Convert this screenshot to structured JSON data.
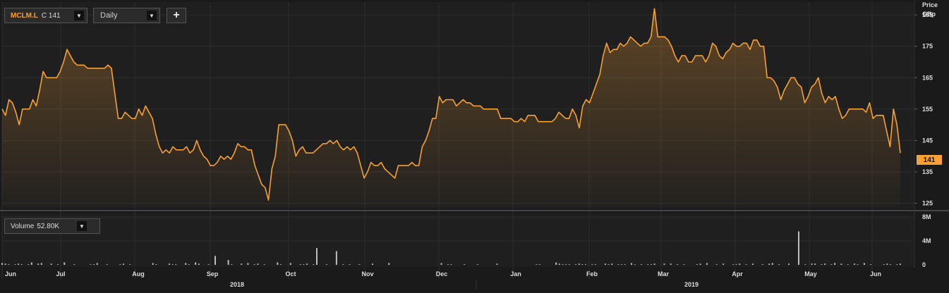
{
  "toolbar": {
    "symbol": "MCLM.L",
    "close_label": "C 141",
    "interval": "Daily",
    "add_label": "+"
  },
  "price_axis": {
    "title": "Price",
    "unit": "GBp"
  },
  "last_price_tag": "141",
  "volume_selector": {
    "label": "Volume",
    "value": "52.80K"
  },
  "colors": {
    "accent": "#f7a035",
    "background": "#1a1a1a",
    "grid": "#2e2e2e",
    "volume_bar": "#bdbdbd"
  },
  "chart_data": [
    {
      "type": "area",
      "series": [
        {
          "values": [
            155,
            153,
            158,
            157,
            154,
            150,
            155,
            155,
            155,
            158,
            156,
            161,
            167,
            165,
            165,
            165,
            165,
            167,
            170,
            174,
            172,
            170,
            169,
            169,
            169,
            168,
            168,
            168,
            168,
            168,
            168,
            169,
            168,
            160,
            152,
            152,
            154,
            153,
            152,
            152,
            155,
            153,
            156,
            154,
            152,
            147,
            143,
            141,
            142,
            141,
            143,
            142,
            142,
            142,
            143,
            141,
            142,
            145,
            142,
            140,
            139,
            137,
            137,
            138,
            140,
            139,
            140,
            139,
            141,
            144,
            143,
            143,
            142,
            142,
            137,
            134,
            131,
            130,
            126,
            136,
            140,
            150,
            150,
            150,
            148,
            145,
            140,
            142,
            143,
            141,
            141,
            141,
            142,
            143,
            144,
            144,
            145,
            144,
            145,
            143,
            142,
            143,
            142,
            143,
            141,
            137,
            133,
            135,
            138,
            137,
            137,
            138,
            136,
            135,
            134,
            133,
            137,
            137,
            137,
            137,
            138,
            137,
            137,
            143,
            145,
            148,
            152,
            152,
            159,
            157,
            158,
            158,
            158,
            156,
            157,
            158,
            157,
            157,
            156,
            156,
            156,
            155,
            155,
            155,
            155,
            155,
            152,
            152,
            152,
            152,
            151,
            151,
            152,
            151,
            153,
            153,
            153,
            151,
            151,
            151,
            151,
            151,
            152,
            154,
            153,
            152,
            152,
            155,
            153,
            149,
            156,
            158,
            157,
            160,
            163,
            166,
            172,
            176,
            173,
            174,
            174,
            176,
            175,
            176,
            178,
            177,
            176,
            175,
            176,
            176,
            178,
            187,
            178,
            178,
            178,
            177,
            175,
            172,
            170,
            172,
            172,
            170,
            170,
            172,
            172,
            172,
            170,
            172,
            176,
            175,
            172,
            171,
            173,
            174,
            176,
            175,
            175,
            176,
            176,
            174,
            177,
            177,
            175,
            175,
            165,
            165,
            164,
            162,
            158,
            161,
            163,
            165,
            165,
            163,
            162,
            157,
            159,
            162,
            163,
            165,
            160,
            157,
            159,
            158,
            159,
            155,
            152,
            153,
            155,
            155,
            155,
            155,
            155,
            154,
            157,
            152,
            153,
            153,
            153,
            148,
            143,
            155,
            150,
            141
          ]
        }
      ],
      "x": {
        "tick_labels": [
          "Jun",
          "Jul",
          "Aug",
          "Sep",
          "Oct",
          "Nov",
          "Dec",
          "Jan",
          "Feb",
          "Mar",
          "Apr",
          "May",
          "Jun"
        ],
        "year_labels": [
          "2018",
          "2019"
        ]
      },
      "y": {
        "ticks": [
          125,
          135,
          145,
          155,
          165,
          175,
          185
        ],
        "ylim": [
          124,
          187.5
        ]
      },
      "grid": true,
      "last_value": 141
    },
    {
      "type": "bar",
      "series": [
        {
          "name": "Volume",
          "values": [
            0.3,
            0.2,
            0.1,
            0,
            0.1,
            0.2,
            0.1,
            0,
            0.1,
            0.4,
            0,
            0.2,
            0.3,
            0,
            0,
            0.2,
            0,
            0.1,
            0,
            0.4,
            0,
            0,
            0.1,
            0,
            0,
            0,
            0,
            0.1,
            0.1,
            0.3,
            0,
            0,
            0.1,
            0,
            0,
            0,
            0.1,
            0.2,
            0,
            0.1,
            0,
            0,
            0,
            0,
            0,
            0,
            0.3,
            0.1,
            0,
            0,
            0,
            0.2,
            0.1,
            0.1,
            0,
            0,
            0.3,
            0.1,
            0,
            0.4,
            0.2,
            0,
            0,
            0.1,
            0,
            1.5,
            0,
            0,
            0,
            0.8,
            0.1,
            0,
            0,
            0.2,
            0,
            0.3,
            0,
            0.1,
            0.2,
            0,
            0.1,
            0,
            0,
            0,
            0.4,
            0.1,
            0,
            0,
            0.3,
            0,
            0,
            0.1,
            0.1,
            0.2,
            0,
            0.1,
            2.8,
            0,
            0,
            0.1,
            0,
            0,
            2.3,
            0,
            0.1,
            0,
            0.1,
            0,
            0,
            0.1,
            0,
            0,
            0,
            0.2,
            0,
            0,
            0,
            0,
            0.3,
            0,
            0,
            0,
            0,
            0,
            0,
            0,
            0,
            0,
            0,
            0,
            0,
            0,
            0,
            0,
            0.3,
            0,
            0.1,
            0.1,
            0,
            0,
            0,
            0.1,
            0,
            0,
            0,
            0.1,
            0,
            0,
            0,
            0,
            0,
            0.2,
            0,
            0,
            0,
            0,
            0,
            0,
            0,
            0,
            0,
            0,
            0,
            0.1,
            0.1,
            0,
            0,
            0,
            0,
            0.4,
            0.2,
            0.1,
            0.1,
            0.1,
            0,
            0.1,
            0.2,
            0.1,
            0.1,
            0,
            0.1,
            0.1,
            0,
            0,
            0.2,
            0.1,
            0.2,
            0,
            0.1,
            0.1,
            0.1,
            0,
            0.3,
            0.1,
            0,
            0.1,
            0,
            0.1,
            0.1,
            0.2,
            0,
            0,
            0.2,
            0,
            0.2,
            0,
            0.1,
            0,
            0.1,
            0,
            0,
            0,
            0.1,
            0.2,
            0,
            0.3,
            0,
            0,
            0.1,
            0,
            0.2,
            0,
            0,
            0.1,
            0.1,
            0.2,
            0,
            0.1,
            0,
            0.2,
            0,
            0,
            0.1,
            0,
            0.2,
            0.3,
            0,
            0.1,
            0,
            0,
            0.2,
            0,
            0,
            5.6,
            0,
            0.1,
            0,
            0.2,
            0.2,
            0,
            0.1,
            0.2,
            0,
            0.1,
            0.3,
            0,
            0.2,
            0,
            0.1,
            0,
            0.2,
            0.1,
            0,
            0.3,
            0,
            0.1,
            0,
            0,
            0,
            0.1,
            0.2,
            0.1,
            0,
            0.1,
            0.2
          ]
        }
      ],
      "y": {
        "tick_labels": [
          "8M",
          "4M",
          "0"
        ],
        "ylim": [
          0,
          8.6
        ]
      }
    }
  ]
}
